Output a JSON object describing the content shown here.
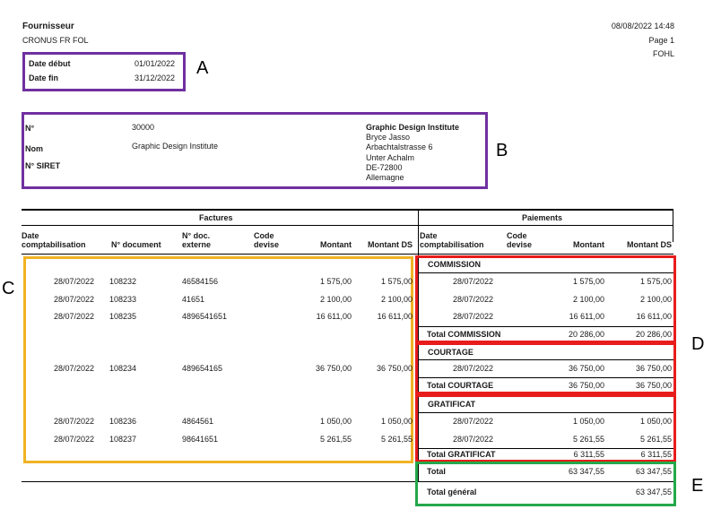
{
  "header": {
    "title": "Fournisseur",
    "company": "CRONUS FR FOL",
    "datetime": "08/08/2022 14:48",
    "page": "Page 1",
    "user": "FOHL"
  },
  "period": {
    "start_label": "Date début",
    "start_value": "01/01/2022",
    "end_label": "Date fin",
    "end_value": "31/12/2022"
  },
  "vendor": {
    "no_label": "N°",
    "no_value": "30000",
    "name_label": "Nom",
    "name_value": "Graphic Design Institute",
    "siret_label": "N° SIRET",
    "address_name": "Graphic Design Institute",
    "address_lines": [
      "Bryce Jasso",
      "Arbachtalstrasse 6",
      "Unter Achalm",
      "DE-72800",
      "Allemagne"
    ]
  },
  "invoices": {
    "section_title": "Factures",
    "headers": {
      "date": "Date comptabilisation",
      "doc": "N° document",
      "ext": "N° doc. externe",
      "cur": "Code devise",
      "amt": "Montant",
      "amt_ds": "Montant DS"
    },
    "rows": [
      {
        "date": "28/07/2022",
        "doc": "108232",
        "ext": "46584156",
        "amt": "1 575,00",
        "amt_ds": "1 575,00"
      },
      {
        "date": "28/07/2022",
        "doc": "108233",
        "ext": "41651",
        "amt": "2 100,00",
        "amt_ds": "2 100,00"
      },
      {
        "date": "28/07/2022",
        "doc": "108235",
        "ext": "4896541651",
        "amt": "16 611,00",
        "amt_ds": "16 611,00"
      },
      {
        "date": "28/07/2022",
        "doc": "108234",
        "ext": "489654165",
        "amt": "36 750,00",
        "amt_ds": "36 750,00"
      },
      {
        "date": "28/07/2022",
        "doc": "108236",
        "ext": "4864561",
        "amt": "1 050,00",
        "amt_ds": "1 050,00"
      },
      {
        "date": "28/07/2022",
        "doc": "108237",
        "ext": "98641651",
        "amt": "5 261,55",
        "amt_ds": "5 261,55"
      }
    ]
  },
  "payments": {
    "section_title": "Paiements",
    "headers": {
      "date": "Date comptabilisation",
      "cur": "Code devise",
      "amt": "Montant",
      "amt_ds": "Montant DS"
    },
    "groups": [
      {
        "name": "COMMISSION",
        "rows": [
          {
            "date": "28/07/2022",
            "amt": "1 575,00",
            "amt_ds": "1 575,00"
          },
          {
            "date": "28/07/2022",
            "amt": "2 100,00",
            "amt_ds": "2 100,00"
          },
          {
            "date": "28/07/2022",
            "amt": "16 611,00",
            "amt_ds": "16 611,00"
          }
        ],
        "total_label": "Total COMMISSION",
        "total_amt": "20 286,00",
        "total_amt_ds": "20 286,00"
      },
      {
        "name": "COURTAGE",
        "rows": [
          {
            "date": "28/07/2022",
            "amt": "36 750,00",
            "amt_ds": "36 750,00"
          }
        ],
        "total_label": "Total COURTAGE",
        "total_amt": "36 750,00",
        "total_amt_ds": "36 750,00"
      },
      {
        "name": "GRATIFICAT",
        "rows": [
          {
            "date": "28/07/2022",
            "amt": "1 050,00",
            "amt_ds": "1 050,00"
          },
          {
            "date": "28/07/2022",
            "amt": "5 261,55",
            "amt_ds": "5 261,55"
          }
        ],
        "total_label": "Total GRATIFICAT",
        "total_amt": "6 311,55",
        "total_amt_ds": "6 311,55"
      }
    ],
    "total_label": "Total",
    "total_amt": "63 347,55",
    "total_amt_ds": "63 347,55",
    "grand_total_label": "Total général",
    "grand_total_amt_ds": "63 347,55"
  },
  "callouts": {
    "a": "A",
    "b": "B",
    "c": "C",
    "d": "D",
    "e": "E"
  },
  "colors": {
    "purple": "#7030a0",
    "orange": "#f0b323",
    "red": "#e81c1c",
    "green": "#24a84a"
  }
}
